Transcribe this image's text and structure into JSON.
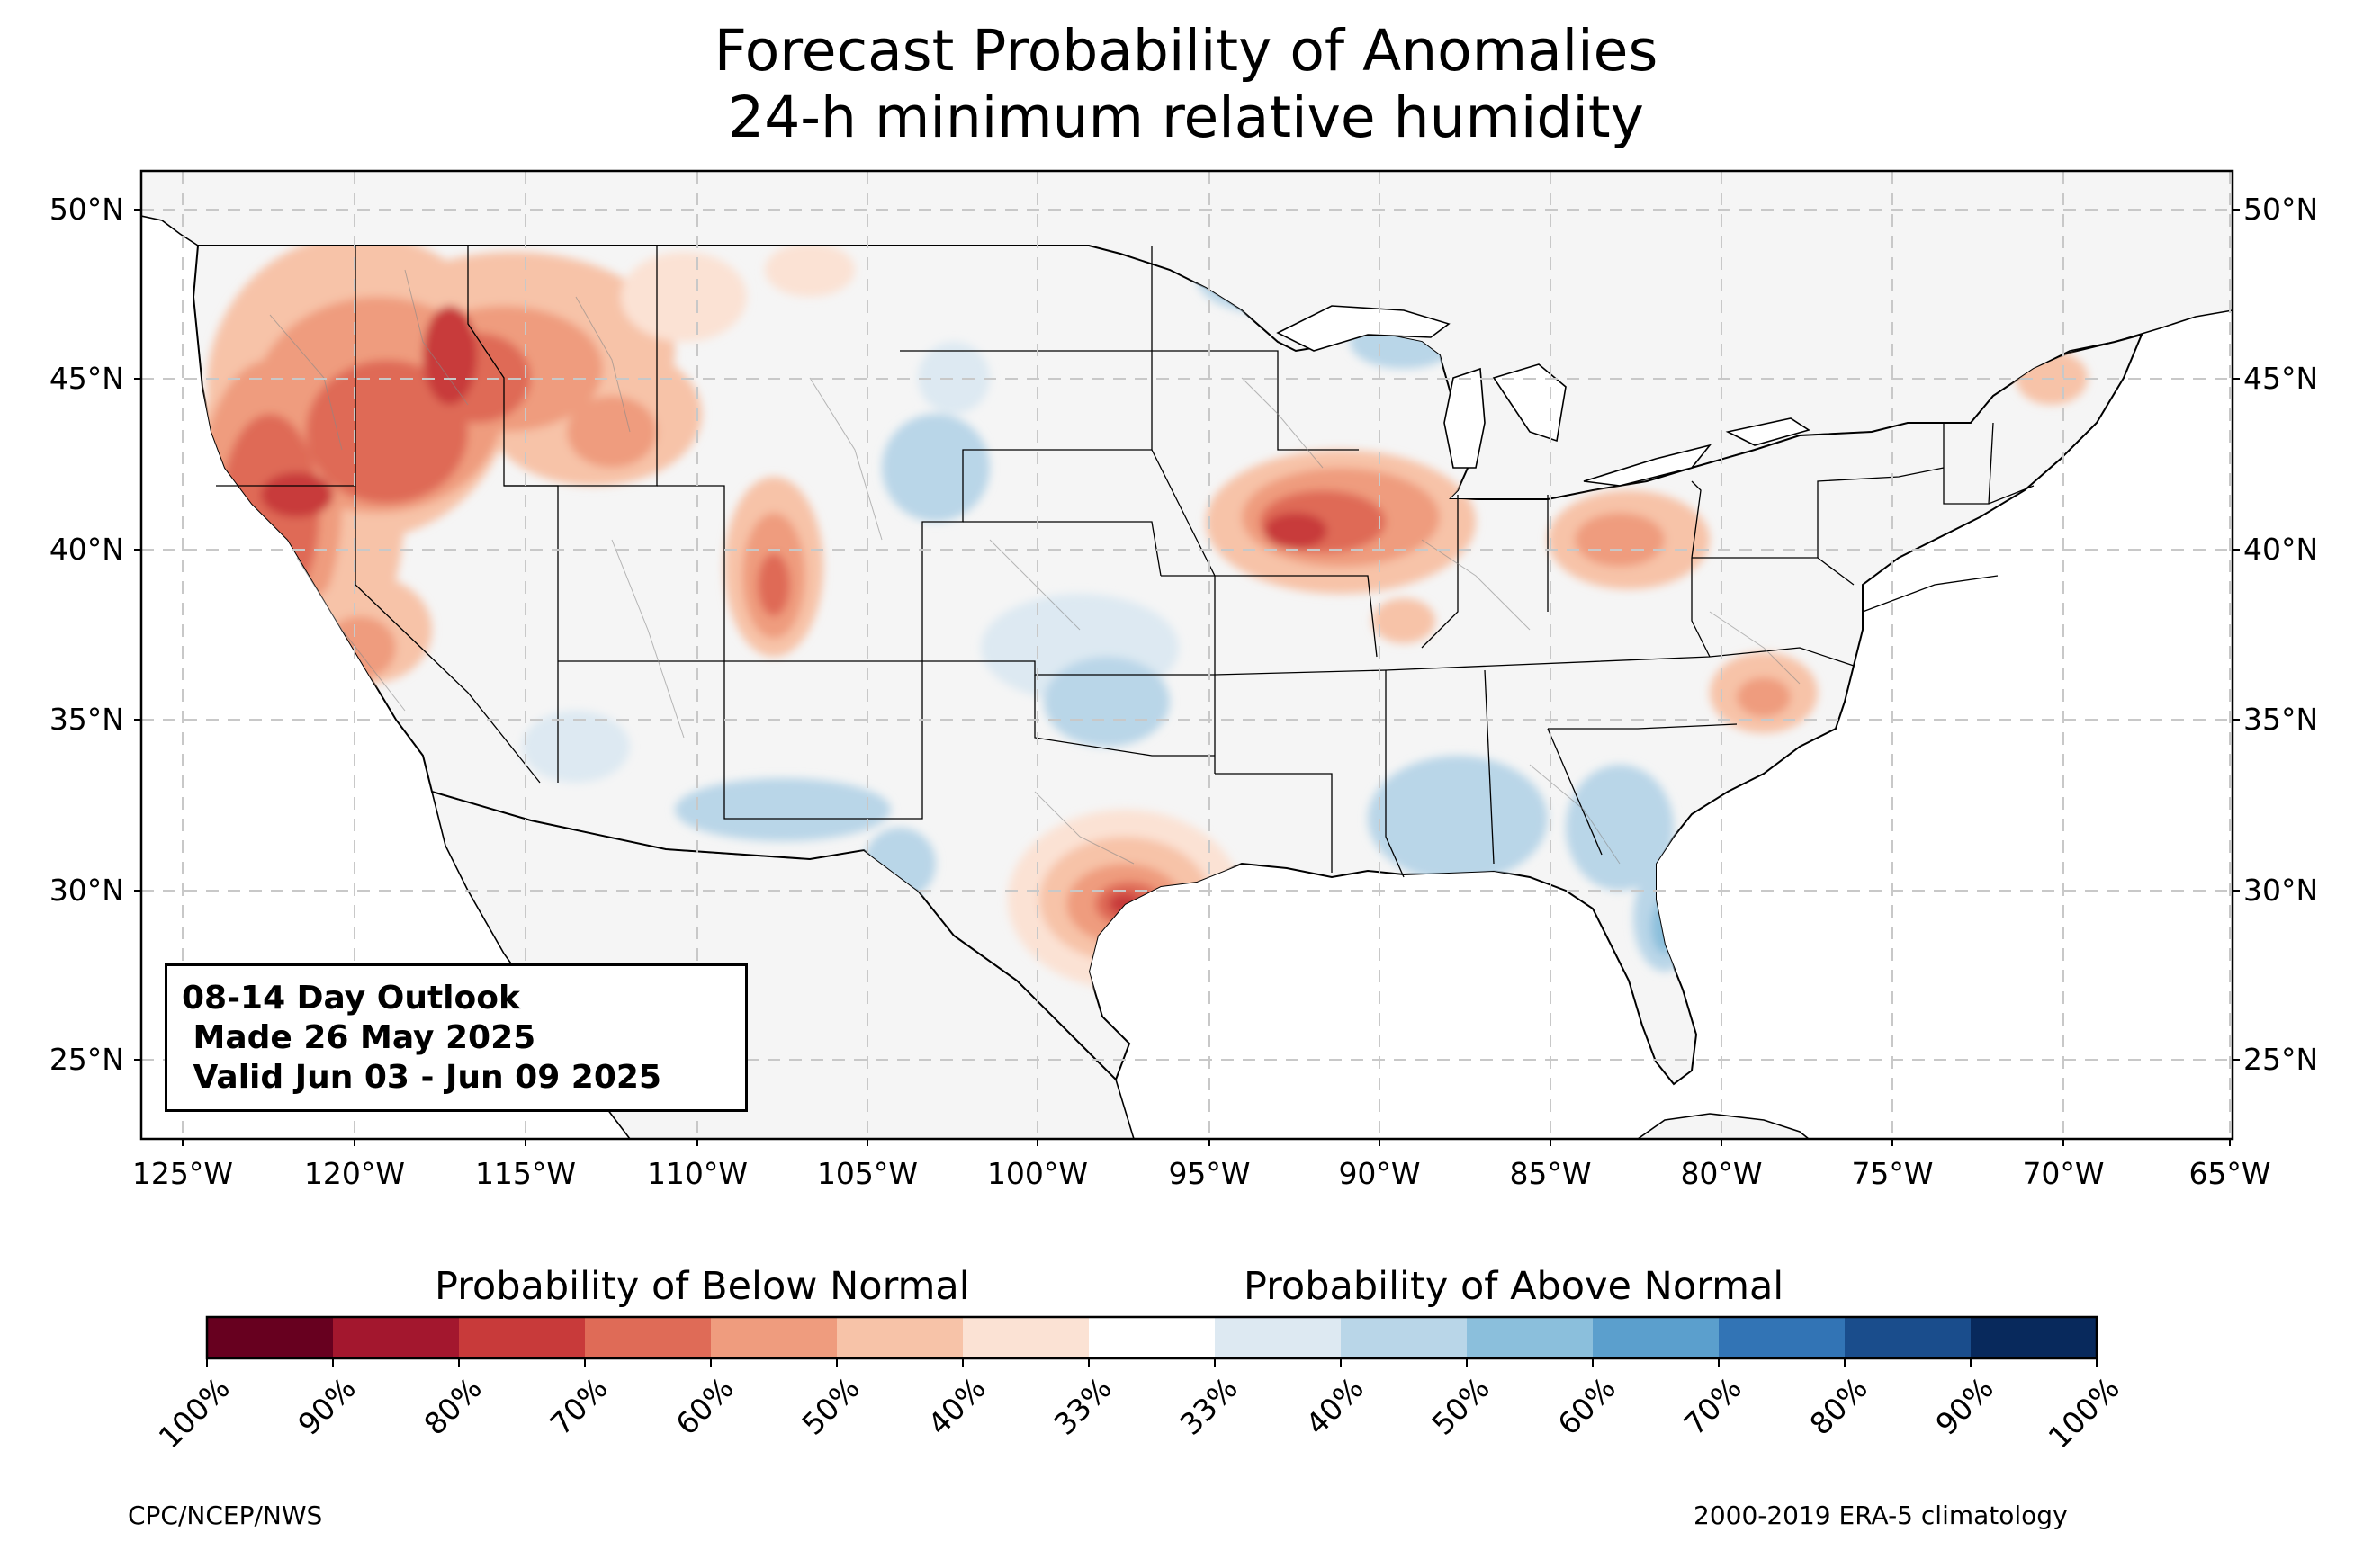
{
  "title": {
    "line1": "Forecast Probability of Anomalies",
    "line2": "24-h minimum relative humidity"
  },
  "map": {
    "lat_labels": [
      "50°N",
      "45°N",
      "40°N",
      "35°N",
      "30°N",
      "25°N"
    ],
    "lon_labels": [
      "125°W",
      "120°W",
      "115°W",
      "110°W",
      "105°W",
      "100°W",
      "95°W",
      "90°W",
      "85°W",
      "80°W",
      "75°W",
      "70°W",
      "65°W"
    ],
    "gridlines": true,
    "land_color": "#f5f5f5",
    "outlook": {
      "line1": "08-14 Day Outlook",
      "line2": " Made 26 May 2025",
      "line3": " Valid Jun 03 - Jun 09 2025"
    }
  },
  "colorbar": {
    "below_label": "Probability of Below Normal",
    "above_label": "Probability of Above Normal",
    "tick_labels": [
      "100%",
      "90%",
      "80%",
      "70%",
      "60%",
      "50%",
      "40%",
      "33%",
      "33%",
      "40%",
      "50%",
      "60%",
      "70%",
      "80%",
      "90%",
      "100%"
    ],
    "colors": [
      "#67001f",
      "#a3172e",
      "#c83a3a",
      "#df6b57",
      "#ef9c7e",
      "#f7c3a8",
      "#fbe2d4",
      "#ffffff",
      "#dde9f2",
      "#b9d6e8",
      "#8bbfdc",
      "#5b9fcd",
      "#3274b5",
      "#1a4d8c",
      "#08295c"
    ]
  },
  "credits": {
    "left": "CPC/NCEP/NWS",
    "right": "2000-2019 ERA-5 climatology"
  }
}
